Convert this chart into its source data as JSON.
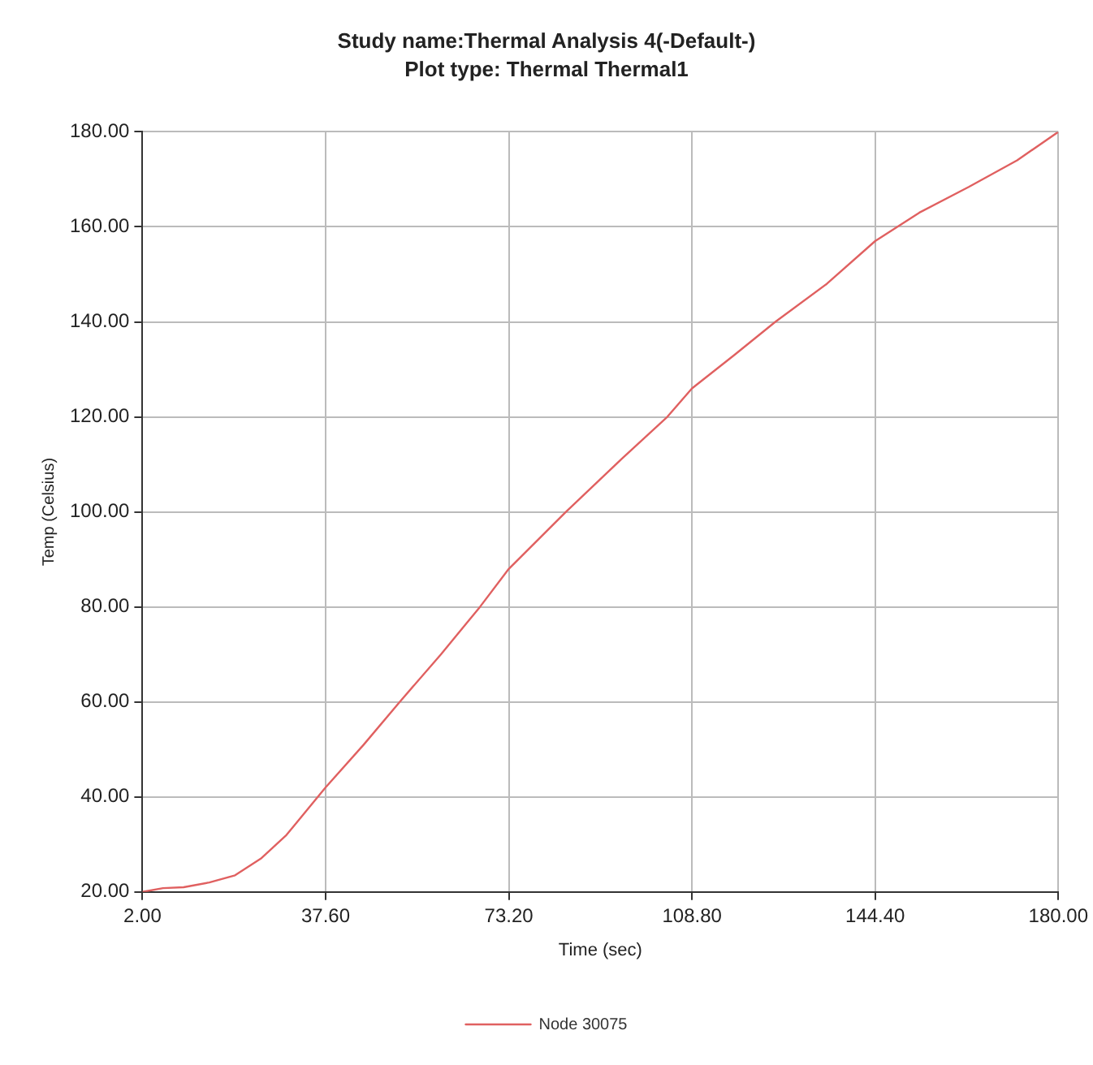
{
  "chart_data": {
    "type": "line",
    "title": "Study name:Thermal Analysis 4(-Default-)",
    "subtitle": "Plot type: Thermal Thermal1",
    "xlabel": "Time (sec)",
    "ylabel": "Temp (Celsius)",
    "xlim": [
      2,
      180
    ],
    "xticks": [
      {
        "value": 2,
        "label": "2.00"
      },
      {
        "value": 37.6,
        "label": "37.60"
      },
      {
        "value": 73.2,
        "label": "73.20"
      },
      {
        "value": 108.8,
        "label": "108.80"
      },
      {
        "value": 144.4,
        "label": "144.40"
      },
      {
        "value": 180,
        "label": "180.00"
      }
    ],
    "ylim": [
      20,
      180
    ],
    "yticks": [
      {
        "value": 20,
        "label": "20.00"
      },
      {
        "value": 40,
        "label": "40.00"
      },
      {
        "value": 60,
        "label": "60.00"
      },
      {
        "value": 80,
        "label": "80.00"
      },
      {
        "value": 100,
        "label": "100.00"
      },
      {
        "value": 120,
        "label": "120.00"
      },
      {
        "value": 140,
        "label": "140.00"
      },
      {
        "value": 160,
        "label": "160.00"
      },
      {
        "value": 180,
        "label": "180.00"
      }
    ],
    "grid": true,
    "legend": "bottom",
    "marker": "none",
    "line_style": "solid",
    "series": [
      {
        "name": "Node 30075",
        "color": "#e06060",
        "x": [
          2,
          6,
          10,
          15,
          20,
          25,
          30,
          37.6,
          45,
          52,
          60,
          67.6,
          73.2,
          84.3,
          95,
          104,
          108.8,
          117,
          125,
          135,
          144.4,
          153,
          162.6,
          172,
          180
        ],
        "values": [
          20,
          20.8,
          21,
          22,
          23.5,
          27,
          32,
          42,
          51,
          60,
          70,
          80,
          88,
          100,
          111,
          120,
          126,
          133,
          140,
          148,
          157,
          163,
          168.4,
          174,
          180
        ]
      }
    ]
  }
}
